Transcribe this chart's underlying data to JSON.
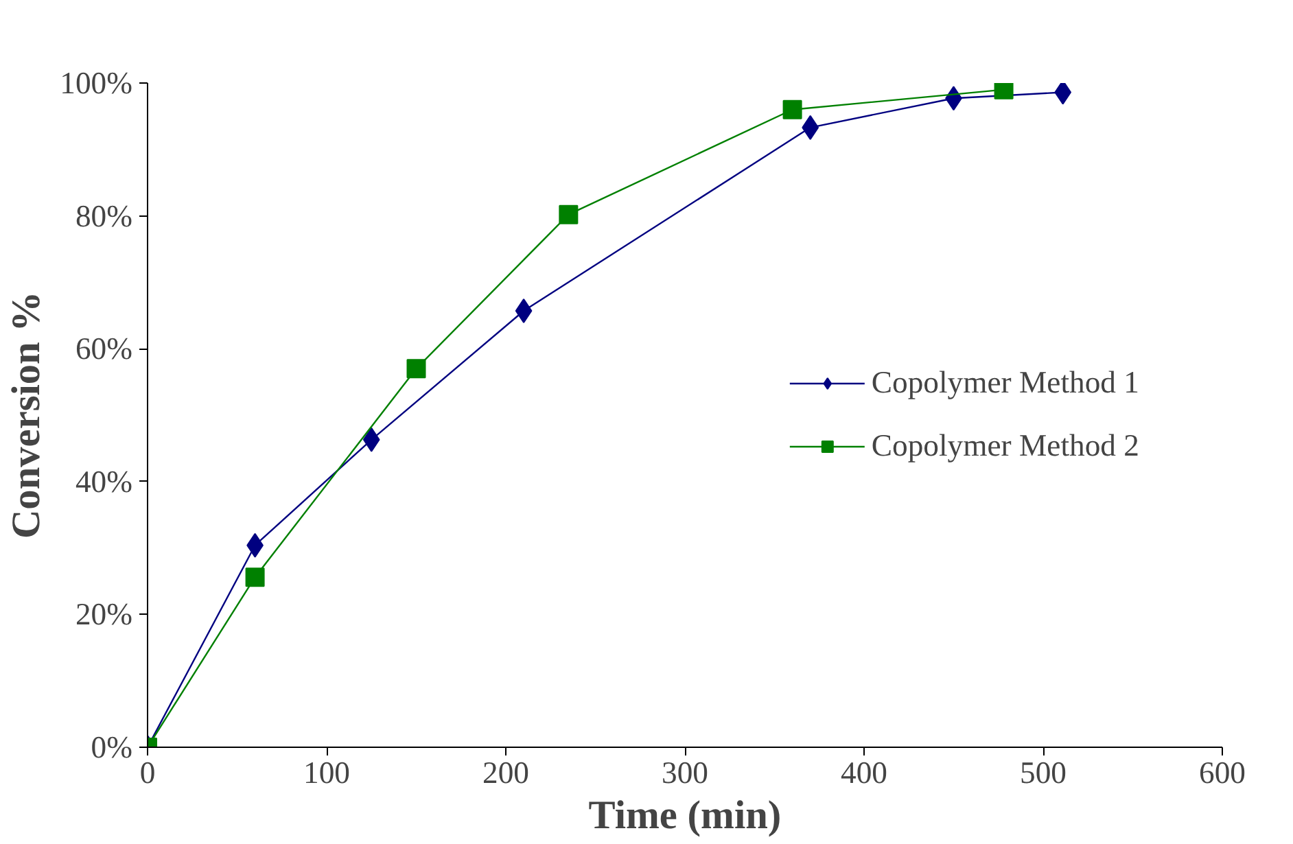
{
  "chart_data": {
    "type": "line",
    "xlabel": "Time (min)",
    "ylabel": "Conversion %",
    "xlim": [
      0,
      600
    ],
    "xticks": [
      0,
      100,
      200,
      300,
      400,
      500,
      600
    ],
    "ylim": [
      0,
      100
    ],
    "yticks": [
      {
        "value": 0,
        "label": "0%"
      },
      {
        "value": 20,
        "label": "20%"
      },
      {
        "value": 40,
        "label": "40%"
      },
      {
        "value": 60,
        "label": "60%"
      },
      {
        "value": 80,
        "label": "80%"
      },
      {
        "value": 100,
        "label": "100%"
      }
    ],
    "grid": false,
    "legend": "right",
    "line_style": "solid",
    "series": [
      {
        "name": "Copolymer Method 1",
        "color": "#000080",
        "marker": "diamond",
        "x": [
          0,
          60,
          125,
          210,
          370,
          450,
          511
        ],
        "values": [
          0,
          30.4,
          46.3,
          65.7,
          93.3,
          97.7,
          98.6
        ]
      },
      {
        "name": "Copolymer Method 2",
        "color": "#008000",
        "marker": "square",
        "x": [
          0,
          60,
          150,
          235,
          360,
          478
        ],
        "values": [
          0,
          25.6,
          57,
          80.2,
          96,
          99
        ]
      }
    ]
  }
}
